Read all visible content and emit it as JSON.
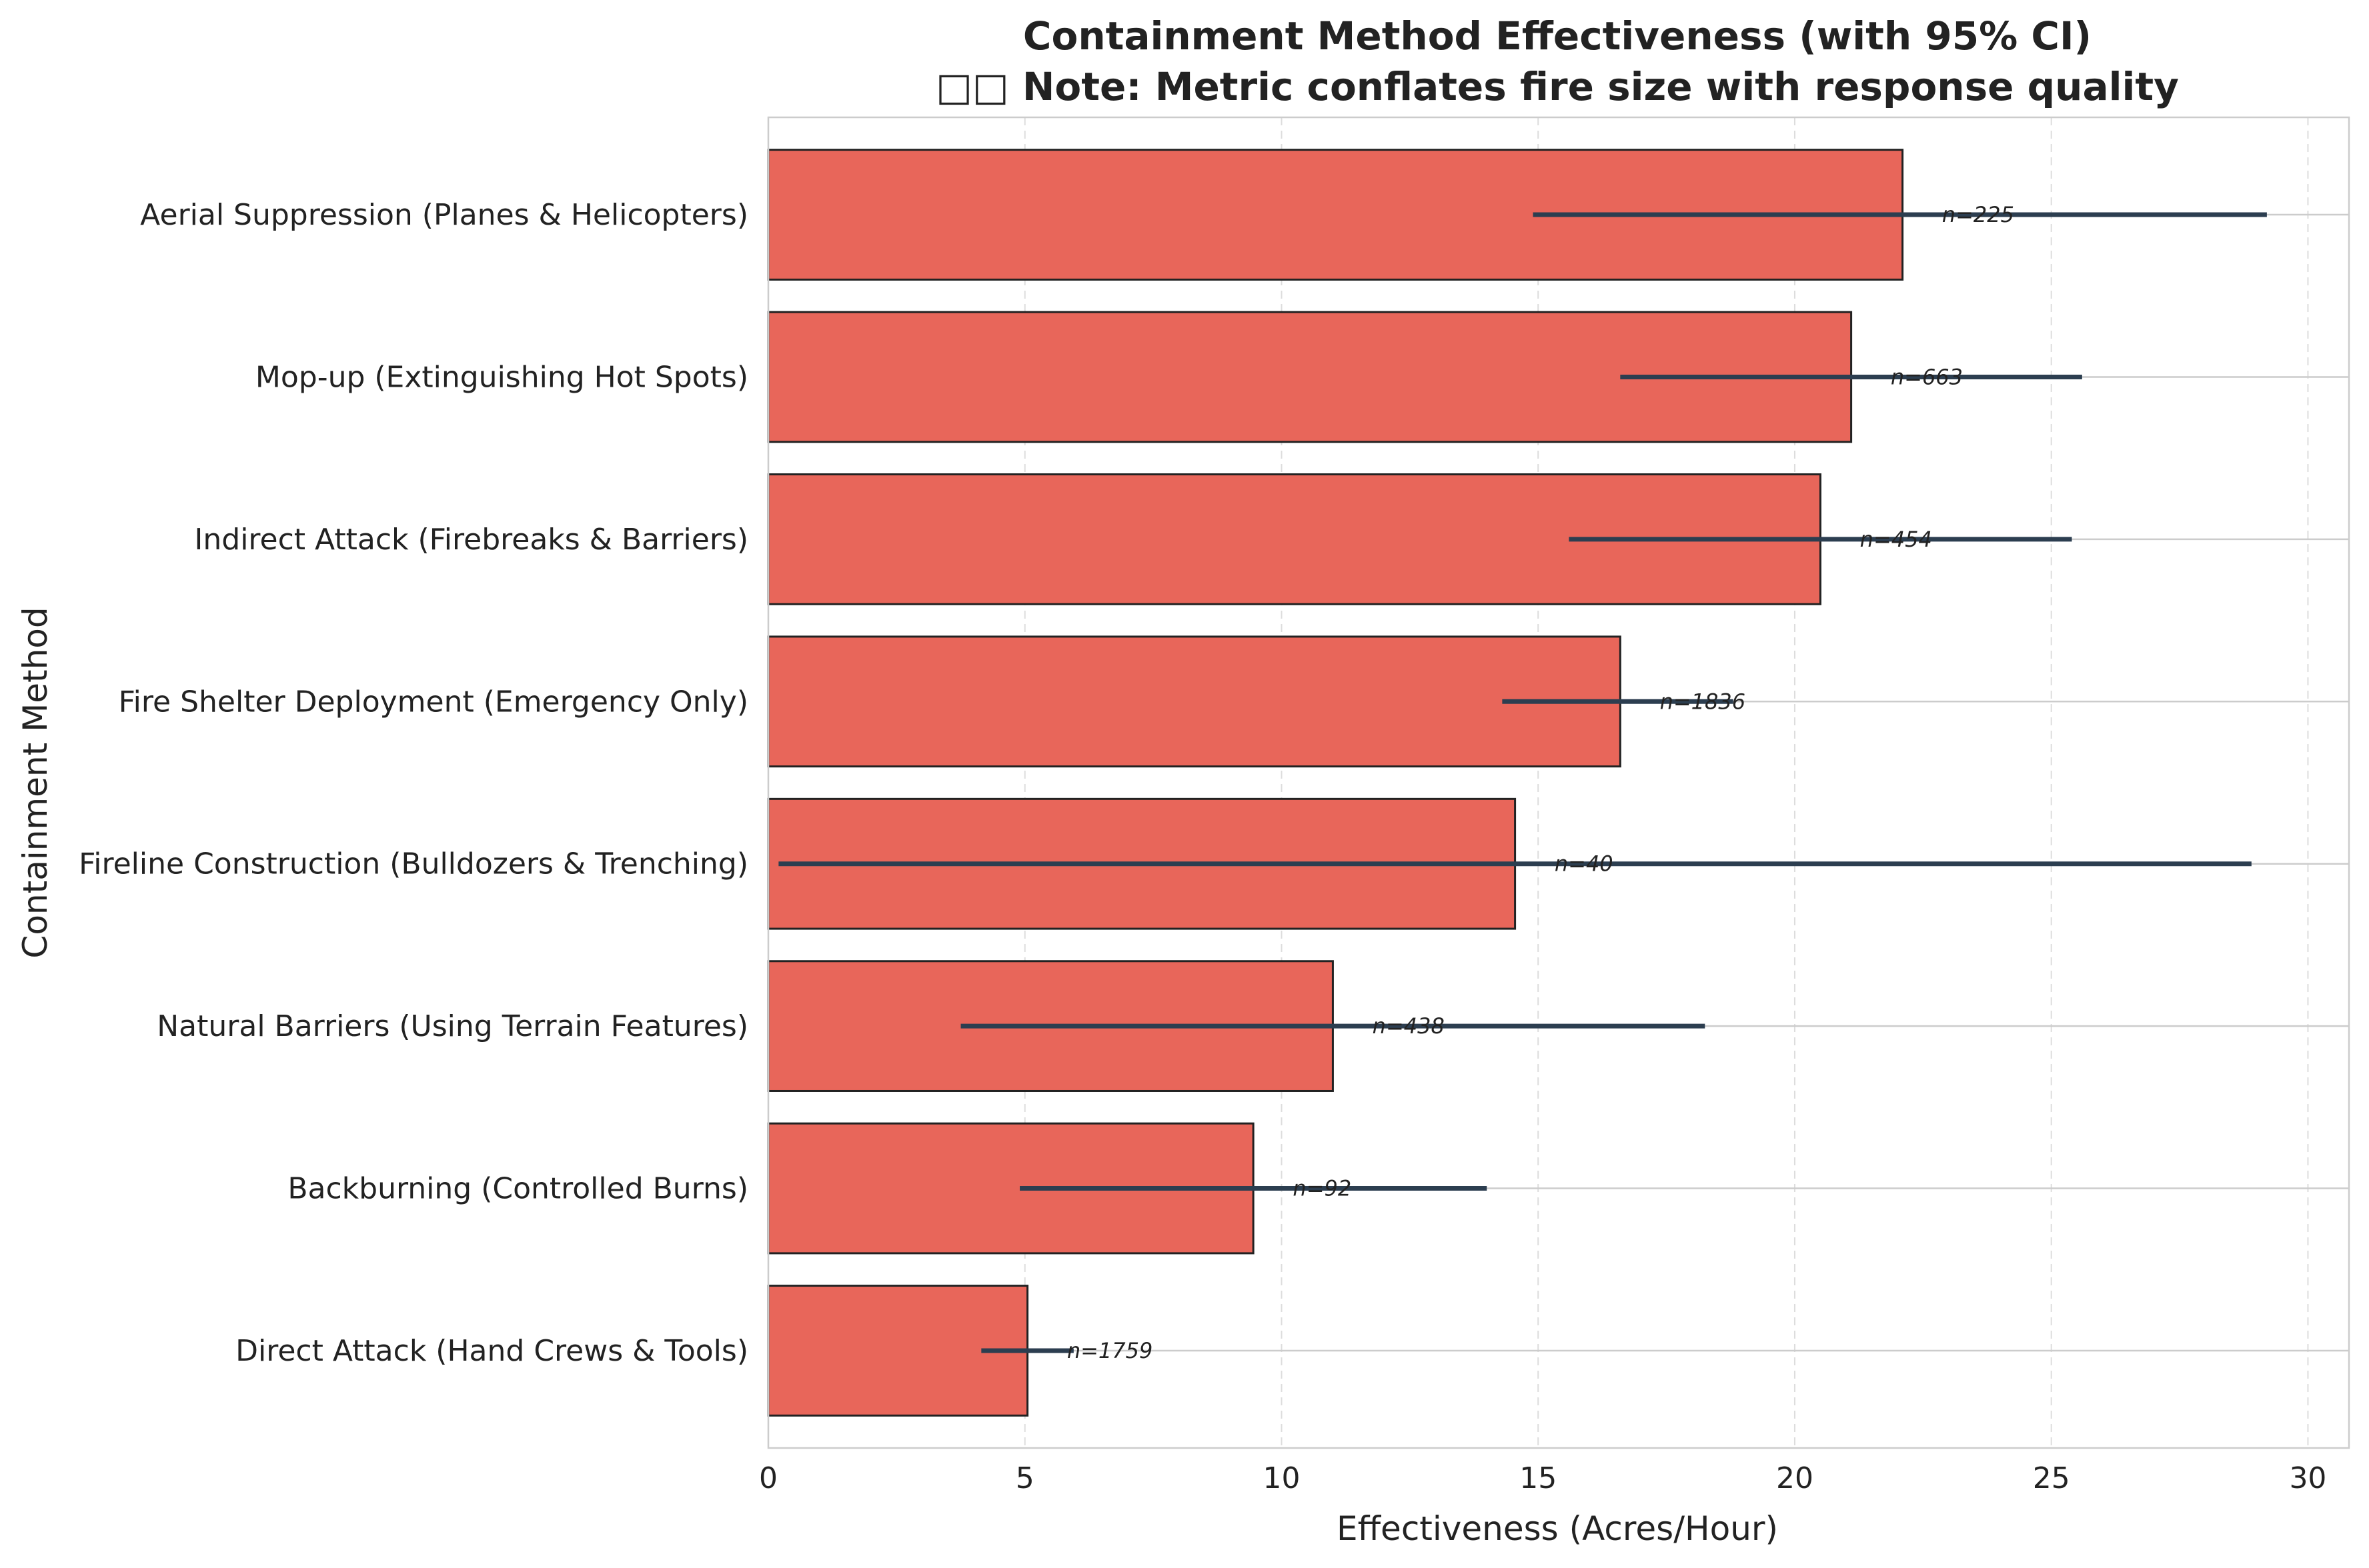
{
  "chart_data": {
    "type": "bar",
    "orientation": "horizontal",
    "title": "Containment Method Effectiveness (with 95% CI)",
    "subtitle": "□□ Note: Metric conflates fire size with response quality",
    "xlabel": "Effectiveness (Acres/Hour)",
    "ylabel": "Containment Method",
    "xlim": [
      0,
      30.8
    ],
    "xticks": [
      0,
      5,
      10,
      15,
      20,
      25,
      30
    ],
    "grid": true,
    "bar_color": "#e8665a",
    "bar_edge_color": "#222222",
    "errorbar_color": "#2c3e50",
    "categories": [
      "Aerial Suppression (Planes & Helicopters)",
      "Mop-up (Extinguishing Hot Spots)",
      "Indirect Attack (Firebreaks & Barriers)",
      "Fire Shelter Deployment (Emergency Only)",
      "Fireline Construction (Bulldozers & Trenching)",
      "Natural Barriers (Using Terrain Features)",
      "Backburning (Controlled Burns)",
      "Direct Attack (Hand Crews & Tools)"
    ],
    "values": [
      22.1,
      21.1,
      20.5,
      16.6,
      14.55,
      11.0,
      9.45,
      5.05
    ],
    "ci_low": [
      14.9,
      16.6,
      15.6,
      14.3,
      0.2,
      3.75,
      4.9,
      4.15
    ],
    "ci_high": [
      29.2,
      25.6,
      25.4,
      18.8,
      28.9,
      18.25,
      14.0,
      5.95
    ],
    "n_labels": [
      "n=225",
      "n=663",
      "n=454",
      "n=1836",
      "n=40",
      "n=438",
      "n=92",
      "n=1759"
    ]
  }
}
